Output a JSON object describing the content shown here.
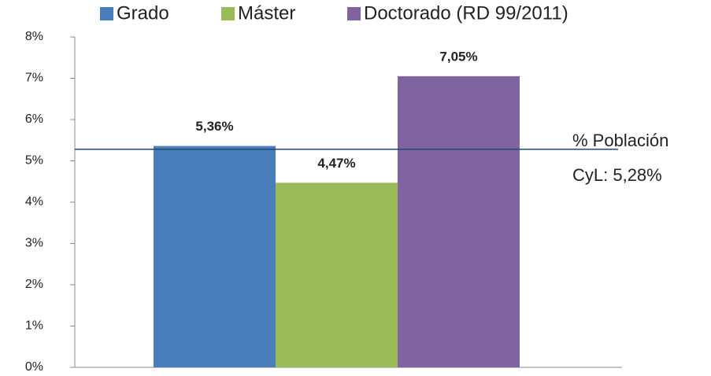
{
  "chart_data": {
    "type": "bar",
    "categories": [
      null
    ],
    "series": [
      {
        "name": "Grado",
        "color": "#4a7ebb",
        "values": [
          5.36
        ],
        "value_labels": [
          "5,36%"
        ]
      },
      {
        "name": "Máster",
        "color": "#9bbb59",
        "values": [
          4.47
        ],
        "value_labels": [
          "4,47%"
        ]
      },
      {
        "name": "Doctorado (RD 99/2011)",
        "color": "#8064a2",
        "values": [
          7.05
        ],
        "value_labels": [
          "7,05%"
        ]
      }
    ],
    "ylim": [
      0,
      8
    ],
    "yticks": [
      {
        "value": 0,
        "label": "0%"
      },
      {
        "value": 1,
        "label": "1%"
      },
      {
        "value": 2,
        "label": "2%"
      },
      {
        "value": 3,
        "label": "3%"
      },
      {
        "value": 4,
        "label": "4%"
      },
      {
        "value": 5,
        "label": "5%"
      },
      {
        "value": 6,
        "label": "6%"
      },
      {
        "value": 7,
        "label": "7%"
      },
      {
        "value": 8,
        "label": "8%"
      }
    ],
    "reference_line": {
      "value": 5.28,
      "color": "#1f497d",
      "label": [
        "% Población",
        "CyL:  5,28%"
      ]
    },
    "legend": "top"
  }
}
